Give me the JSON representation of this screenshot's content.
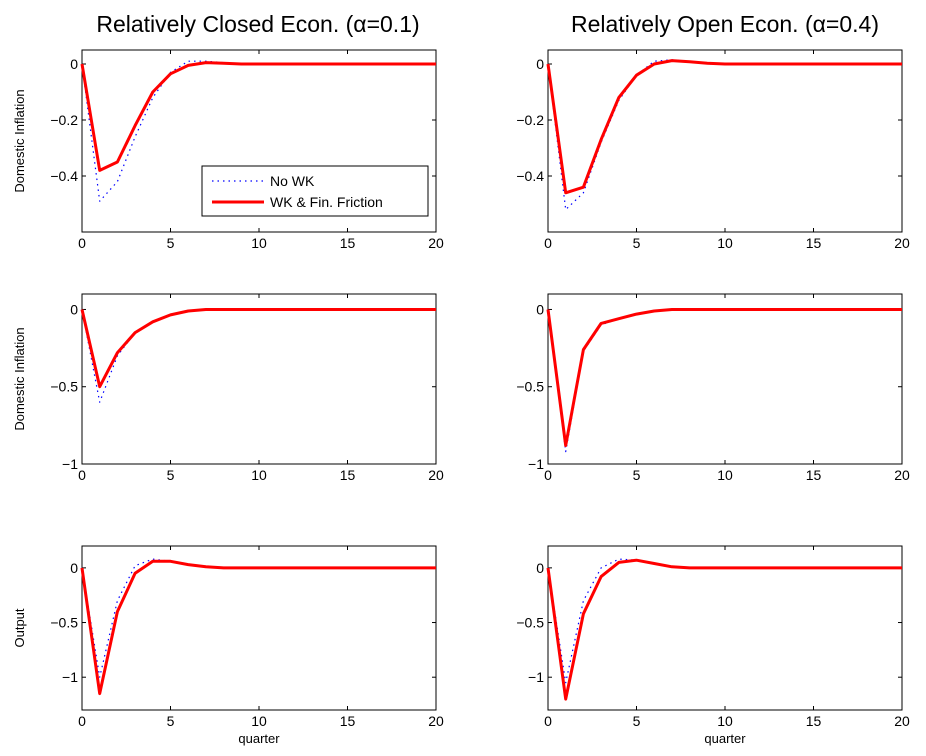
{
  "column_titles": [
    "Relatively Closed Econ. (α=0.1)",
    "Relatively Open Econ. (α=0.4)"
  ],
  "legend": {
    "entries": [
      {
        "label": "No WK",
        "color": "#0000ff",
        "style": "dotted"
      },
      {
        "label": "WK & Fin. Friction",
        "color": "#ff0000",
        "style": "solid"
      }
    ],
    "placement": "lower-right of top-left panel"
  },
  "chart_data": [
    {
      "type": "line",
      "title": "Relatively Closed Econ. (α=0.1)",
      "ylabel": "Domestic Inflation",
      "xlabel": "",
      "xlim": [
        0,
        20
      ],
      "ylim": [
        -0.6,
        0.05
      ],
      "yticks": [
        0,
        -0.2,
        -0.4
      ],
      "xticks": [
        0,
        5,
        10,
        15,
        20
      ],
      "yticklabels": [
        "0",
        "−0.2",
        "−0.4"
      ],
      "xticklabels": [
        "0",
        "5",
        "10",
        "15",
        "20"
      ],
      "grid": false,
      "x": [
        0,
        1,
        2,
        3,
        4,
        5,
        6,
        7,
        8,
        9,
        10,
        11,
        12,
        13,
        14,
        15,
        16,
        17,
        18,
        19,
        20
      ],
      "series": [
        {
          "name": "No WK",
          "color": "#0000ff",
          "style": "dotted",
          "values": [
            0,
            -0.49,
            -0.42,
            -0.26,
            -0.12,
            -0.03,
            0.01,
            0.01,
            0.005,
            0,
            0,
            0,
            0,
            0,
            0,
            0,
            0,
            0,
            0,
            0,
            0
          ]
        },
        {
          "name": "WK & Fin. Friction",
          "color": "#ff0000",
          "style": "solid",
          "values": [
            0,
            -0.38,
            -0.35,
            -0.22,
            -0.1,
            -0.035,
            -0.005,
            0.005,
            0.003,
            0,
            0,
            0,
            0,
            0,
            0,
            0,
            0,
            0,
            0,
            0,
            0
          ]
        }
      ]
    },
    {
      "type": "line",
      "title": "Relatively Open Econ. (α=0.4)",
      "ylabel": "",
      "xlabel": "",
      "xlim": [
        0,
        20
      ],
      "ylim": [
        -0.6,
        0.05
      ],
      "yticks": [
        0,
        -0.2,
        -0.4
      ],
      "xticks": [
        0,
        5,
        10,
        15,
        20
      ],
      "yticklabels": [
        "0",
        "−0.2",
        "−0.4"
      ],
      "xticklabels": [
        "0",
        "5",
        "10",
        "15",
        "20"
      ],
      "grid": false,
      "x": [
        0,
        1,
        2,
        3,
        4,
        5,
        6,
        7,
        8,
        9,
        10,
        11,
        12,
        13,
        14,
        15,
        16,
        17,
        18,
        19,
        20
      ],
      "series": [
        {
          "name": "No WK",
          "color": "#0000ff",
          "style": "dotted",
          "values": [
            0,
            -0.52,
            -0.46,
            -0.28,
            -0.13,
            -0.04,
            0.01,
            0.015,
            0.01,
            0,
            0,
            0,
            0,
            0,
            0,
            0,
            0,
            0,
            0,
            0,
            0
          ]
        },
        {
          "name": "WK & Fin. Friction",
          "color": "#ff0000",
          "style": "solid",
          "values": [
            0,
            -0.46,
            -0.44,
            -0.27,
            -0.12,
            -0.04,
            0,
            0.012,
            0.008,
            0.003,
            0,
            0,
            0,
            0,
            0,
            0,
            0,
            0,
            0,
            0,
            0
          ]
        }
      ]
    },
    {
      "type": "line",
      "title": "",
      "ylabel": "Domestic Inflation",
      "xlabel": "",
      "xlim": [
        0,
        20
      ],
      "ylim": [
        -1,
        0.1
      ],
      "yticks": [
        0,
        -0.5,
        -1
      ],
      "xticks": [
        0,
        5,
        10,
        15,
        20
      ],
      "yticklabels": [
        "0",
        "−0.5",
        "−1"
      ],
      "xticklabels": [
        "0",
        "5",
        "10",
        "15",
        "20"
      ],
      "grid": false,
      "x": [
        0,
        1,
        2,
        3,
        4,
        5,
        6,
        7,
        8,
        9,
        10,
        11,
        12,
        13,
        14,
        15,
        16,
        17,
        18,
        19,
        20
      ],
      "series": [
        {
          "name": "No WK",
          "color": "#0000ff",
          "style": "dotted",
          "values": [
            0,
            -0.6,
            -0.3,
            -0.15,
            -0.08,
            -0.03,
            -0.01,
            0,
            0,
            0,
            0,
            0,
            0,
            0,
            0,
            0,
            0,
            0,
            0,
            0,
            0
          ]
        },
        {
          "name": "WK & Fin. Friction",
          "color": "#ff0000",
          "style": "solid",
          "values": [
            0,
            -0.5,
            -0.28,
            -0.15,
            -0.08,
            -0.035,
            -0.01,
            0,
            0,
            0,
            0,
            0,
            0,
            0,
            0,
            0,
            0,
            0,
            0,
            0,
            0
          ]
        }
      ]
    },
    {
      "type": "line",
      "title": "",
      "ylabel": "",
      "xlabel": "",
      "xlim": [
        0,
        20
      ],
      "ylim": [
        -1,
        0.1
      ],
      "yticks": [
        0,
        -0.5,
        -1
      ],
      "xticks": [
        0,
        5,
        10,
        15,
        20
      ],
      "yticklabels": [
        "0",
        "−0.5",
        "−1"
      ],
      "xticklabels": [
        "0",
        "5",
        "10",
        "15",
        "20"
      ],
      "grid": false,
      "x": [
        0,
        1,
        2,
        3,
        4,
        5,
        6,
        7,
        8,
        9,
        10,
        11,
        12,
        13,
        14,
        15,
        16,
        17,
        18,
        19,
        20
      ],
      "series": [
        {
          "name": "No WK",
          "color": "#0000ff",
          "style": "dotted",
          "values": [
            0,
            -0.92,
            -0.27,
            -0.1,
            -0.06,
            -0.03,
            -0.01,
            0,
            0,
            0,
            0,
            0,
            0,
            0,
            0,
            0,
            0,
            0,
            0,
            0,
            0
          ]
        },
        {
          "name": "WK & Fin. Friction",
          "color": "#ff0000",
          "style": "solid",
          "values": [
            0,
            -0.88,
            -0.26,
            -0.09,
            -0.06,
            -0.03,
            -0.01,
            0,
            0,
            0,
            0,
            0,
            0,
            0,
            0,
            0,
            0,
            0,
            0,
            0,
            0
          ]
        }
      ]
    },
    {
      "type": "line",
      "title": "",
      "ylabel": "Output",
      "xlabel": "quarter",
      "xlim": [
        0,
        20
      ],
      "ylim": [
        -1.3,
        0.2
      ],
      "yticks": [
        0,
        -0.5,
        -1
      ],
      "xticks": [
        0,
        5,
        10,
        15,
        20
      ],
      "yticklabels": [
        "0",
        "−0.5",
        "−1"
      ],
      "xticklabels": [
        "0",
        "5",
        "10",
        "15",
        "20"
      ],
      "grid": false,
      "x": [
        0,
        1,
        2,
        3,
        4,
        5,
        6,
        7,
        8,
        9,
        10,
        11,
        12,
        13,
        14,
        15,
        16,
        17,
        18,
        19,
        20
      ],
      "series": [
        {
          "name": "No WK",
          "color": "#0000ff",
          "style": "dotted",
          "values": [
            0,
            -1.0,
            -0.3,
            0.02,
            0.08,
            0.06,
            0.03,
            0.01,
            0,
            0,
            0,
            0,
            0,
            0,
            0,
            0,
            0,
            0,
            0,
            0,
            0
          ]
        },
        {
          "name": "WK & Fin. Friction",
          "color": "#ff0000",
          "style": "solid",
          "values": [
            0,
            -1.15,
            -0.4,
            -0.05,
            0.06,
            0.06,
            0.03,
            0.01,
            0,
            0,
            0,
            0,
            0,
            0,
            0,
            0,
            0,
            0,
            0,
            0,
            0
          ]
        }
      ]
    },
    {
      "type": "line",
      "title": "",
      "ylabel": "",
      "xlabel": "quarter",
      "xlim": [
        0,
        20
      ],
      "ylim": [
        -1.3,
        0.2
      ],
      "yticks": [
        0,
        -0.5,
        -1
      ],
      "xticks": [
        0,
        5,
        10,
        15,
        20
      ],
      "yticklabels": [
        "0",
        "−0.5",
        "−1"
      ],
      "xticklabels": [
        "0",
        "5",
        "10",
        "15",
        "20"
      ],
      "grid": false,
      "x": [
        0,
        1,
        2,
        3,
        4,
        5,
        6,
        7,
        8,
        9,
        10,
        11,
        12,
        13,
        14,
        15,
        16,
        17,
        18,
        19,
        20
      ],
      "series": [
        {
          "name": "No WK",
          "color": "#0000ff",
          "style": "dotted",
          "values": [
            0,
            -1.05,
            -0.3,
            0,
            0.08,
            0.07,
            0.04,
            0.01,
            0,
            0,
            0,
            0,
            0,
            0,
            0,
            0,
            0,
            0,
            0,
            0,
            0
          ]
        },
        {
          "name": "WK & Fin. Friction",
          "color": "#ff0000",
          "style": "solid",
          "values": [
            0,
            -1.2,
            -0.42,
            -0.08,
            0.05,
            0.07,
            0.04,
            0.01,
            0,
            0,
            0,
            0,
            0,
            0,
            0,
            0,
            0,
            0,
            0,
            0,
            0
          ]
        }
      ]
    }
  ]
}
